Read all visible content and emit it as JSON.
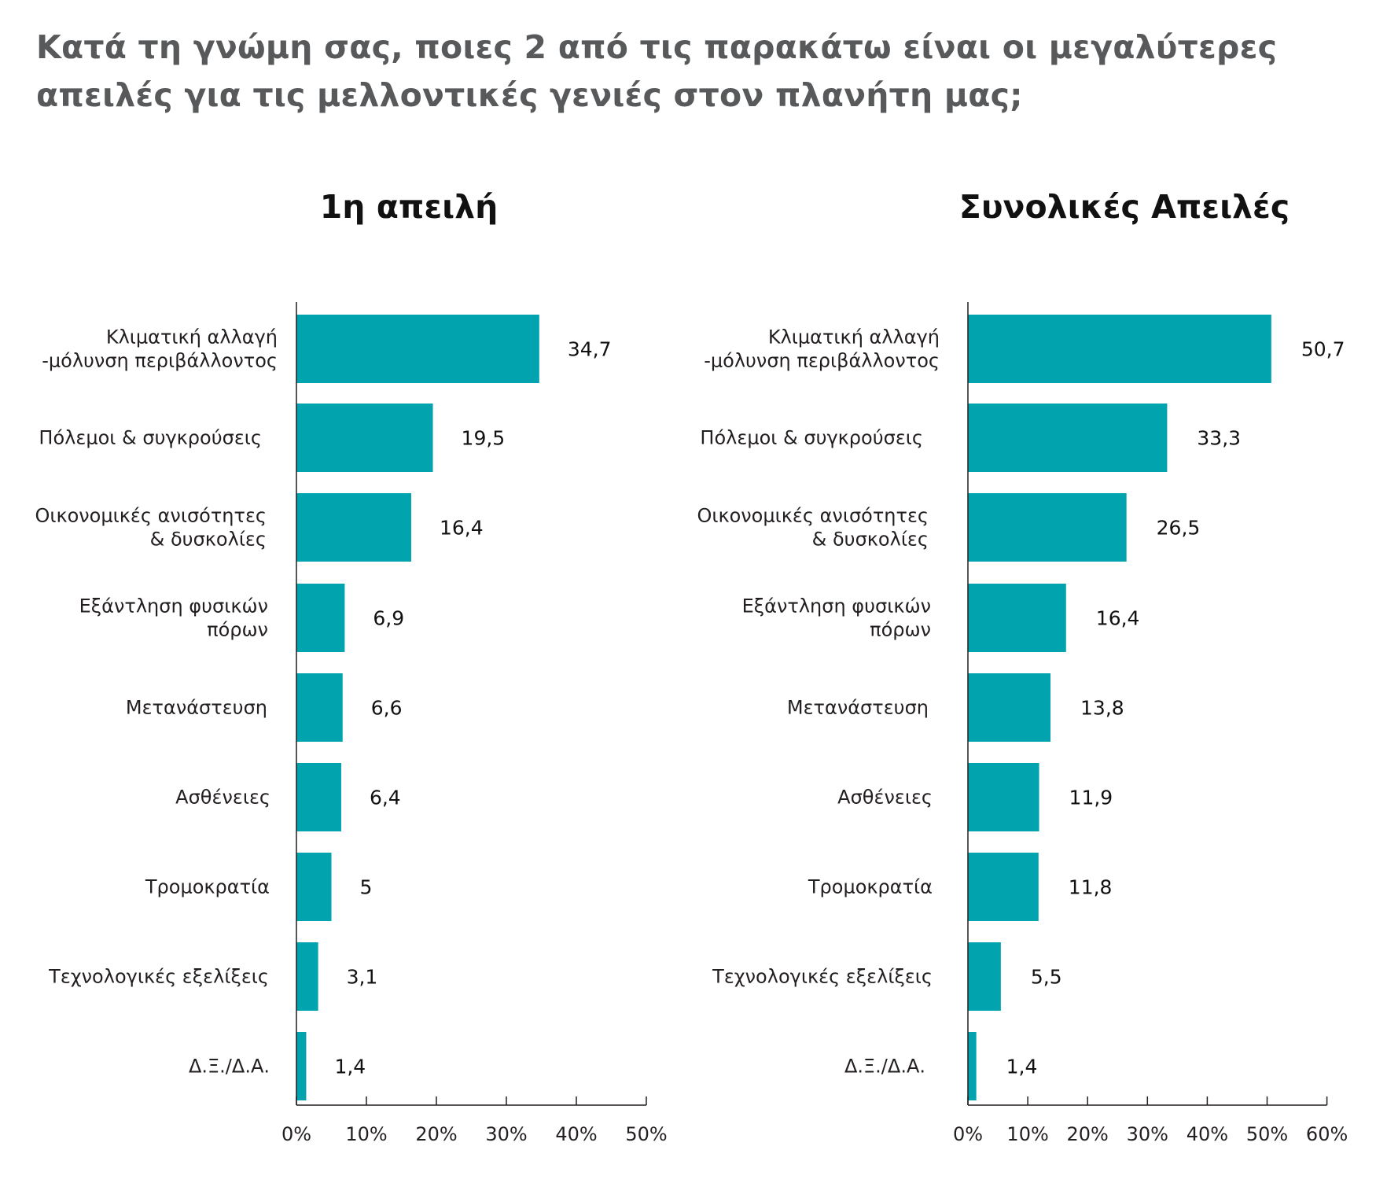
{
  "title": {
    "line1": "Κατά τη γνώμη σας, ποιες 2 από τις παρακάτω είναι οι μεγαλύτερες",
    "line2": "απειλές για τις μελλοντικές γενιές στον πλανήτη μας;"
  },
  "colors": {
    "bar": "#00a3ae",
    "title": "#58595b"
  },
  "chart_data": [
    {
      "type": "bar",
      "orientation": "horizontal",
      "title": "1η απειλή",
      "categories": [
        [
          "Κλιματική αλλαγή",
          "-μόλυνση περιβάλλοντος"
        ],
        [
          "Πόλεμοι & συγκρούσεις"
        ],
        [
          "Οικονομικές ανισότητες",
          "& δυσκολίες"
        ],
        [
          "Εξάντληση φυσικών",
          "πόρων"
        ],
        [
          "Μετανάστευση"
        ],
        [
          "Ασθένειες"
        ],
        [
          "Τρομοκρατία"
        ],
        [
          "Τεχνολογικές εξελίξεις"
        ],
        [
          "Δ.Ξ./Δ.Α."
        ]
      ],
      "values": [
        34.7,
        19.5,
        16.4,
        6.9,
        6.6,
        6.4,
        5,
        3.1,
        1.4
      ],
      "value_labels": [
        "34,7",
        "19,5",
        "16,4",
        "6,9",
        "6,6",
        "6,4",
        "5",
        "3,1",
        "1,4"
      ],
      "xlim": [
        0,
        50
      ],
      "xticks": [
        0,
        10,
        20,
        30,
        40,
        50
      ],
      "xtick_labels": [
        "0%",
        "10%",
        "20%",
        "30%",
        "40%",
        "50%"
      ],
      "grid": false
    },
    {
      "type": "bar",
      "orientation": "horizontal",
      "title": "Συνολικές Απειλές",
      "categories": [
        [
          "Κλιματική αλλαγή",
          "-μόλυνση περιβάλλοντος"
        ],
        [
          "Πόλεμοι & συγκρούσεις"
        ],
        [
          "Οικονομικές ανισότητες",
          "& δυσκολίες"
        ],
        [
          "Εξάντληση φυσικών",
          "πόρων"
        ],
        [
          "Μετανάστευση"
        ],
        [
          "Ασθένειες"
        ],
        [
          "Τρομοκρατία"
        ],
        [
          "Τεχνολογικές εξελίξεις"
        ],
        [
          "Δ.Ξ./Δ.Α."
        ]
      ],
      "values": [
        50.7,
        33.3,
        26.5,
        16.4,
        13.8,
        11.9,
        11.8,
        5.5,
        1.4
      ],
      "value_labels": [
        "50,7",
        "33,3",
        "26,5",
        "16,4",
        "13,8",
        "11,9",
        "11,8",
        "5,5",
        "1,4"
      ],
      "xlim": [
        0,
        60
      ],
      "xticks": [
        0,
        10,
        20,
        30,
        40,
        50,
        60
      ],
      "xtick_labels": [
        "0%",
        "10%",
        "20%",
        "30%",
        "40%",
        "50%",
        "60%"
      ],
      "grid": false
    }
  ]
}
